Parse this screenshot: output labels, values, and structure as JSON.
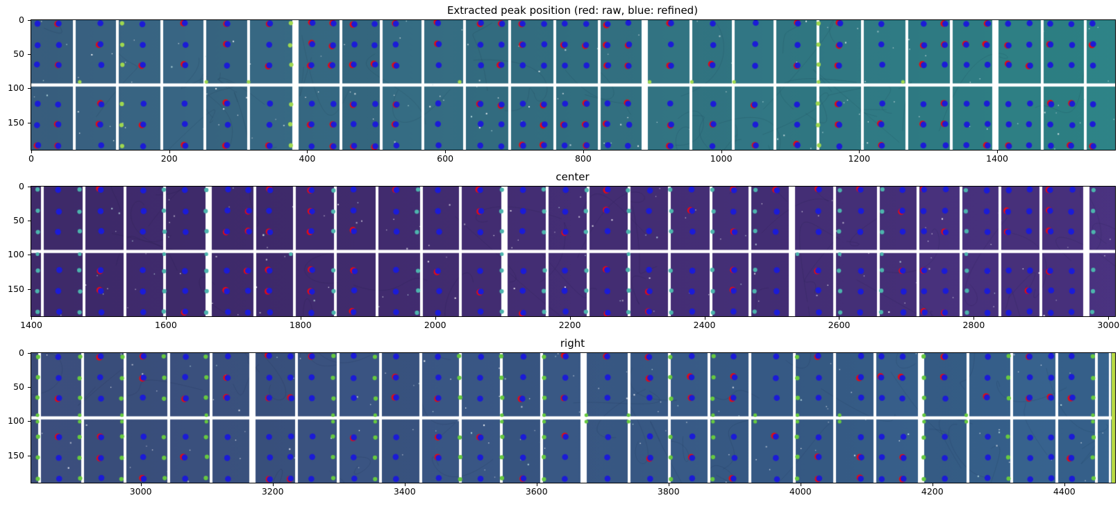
{
  "figure": {
    "background": "#ffffff",
    "text_color": "#000000",
    "axis_frame_color": "#000000"
  },
  "peaks": {
    "legend_note": "red: raw, blue: refined",
    "refined_color": "#1b1bd6",
    "raw_color": "#e30b13",
    "rows": [
      5,
      36,
      66,
      123,
      153,
      184
    ],
    "col_spacing": 30.4,
    "col_offset": 9,
    "dot_radius": 4.3
  },
  "chart_data": [
    {
      "type": "heatmap",
      "panel": "top",
      "title": "Extracted peak position (red: raw, blue: refined)",
      "x_ticks": [
        0,
        200,
        400,
        600,
        800,
        1000,
        1200,
        1400
      ],
      "y_ticks": [
        0,
        50,
        100,
        150
      ],
      "x_range": [
        0,
        1571
      ],
      "y_range": [
        0,
        190
      ],
      "colormap": "viridis",
      "bg_left": "#3b6284",
      "bg_right": "#2e8487",
      "module_width": 58,
      "first_col_width": 60,
      "gap_width": 4,
      "wide_gap_every": 8,
      "wide_gap_width": 9,
      "h_gap_y": 95,
      "edge_dot_color": "#9fd84f",
      "edge_dot_prob": 0.42,
      "edge_row_prob": 0.45,
      "edge_rows": [
        90.5
      ],
      "raw_prob": 0.5,
      "edge_strip": false,
      "strip_color": "",
      "seed": 7
    },
    {
      "type": "heatmap",
      "panel": "center",
      "title": "center",
      "x_ticks": [
        1400,
        1600,
        1800,
        2000,
        2200,
        2400,
        2600,
        2800,
        3000
      ],
      "y_ticks": [
        0,
        50,
        100,
        150
      ],
      "x_range": [
        1400,
        3010
      ],
      "y_range": [
        0,
        190
      ],
      "colormap": "viridis",
      "bg_left": "#402b6c",
      "bg_right": "#4a3380",
      "module_width": 56,
      "first_col_width": 14,
      "gap_width": 4,
      "wide_gap_every": 7,
      "wide_gap_width": 9,
      "h_gap_y": 95,
      "edge_dot_color": "#4db4ad",
      "edge_dot_prob": 0.75,
      "edge_row_prob": 0.6,
      "edge_rows": [
        99
      ],
      "raw_prob": 0.3,
      "edge_strip": false,
      "strip_color": "",
      "seed": 13
    },
    {
      "type": "heatmap",
      "panel": "right",
      "title": "right",
      "x_ticks": [
        3000,
        3200,
        3400,
        3600,
        3800,
        4000,
        4200,
        4400
      ],
      "y_ticks": [
        0,
        50,
        100,
        150
      ],
      "x_range": [
        2834,
        4477
      ],
      "y_range": [
        0,
        190
      ],
      "colormap": "viridis",
      "bg_left": "#3d4f7e",
      "bg_right": "#37648f",
      "module_width": 57,
      "first_col_width": 10,
      "gap_width": 4,
      "wide_gap_every": 8,
      "wide_gap_width": 9,
      "h_gap_y": 95,
      "edge_dot_color": "#66c93f",
      "edge_dot_prob": 0.55,
      "edge_row_prob": 0.55,
      "edge_rows": [
        91,
        100.5
      ],
      "raw_prob": 0.35,
      "edge_strip": true,
      "strip_color": "#b9db44",
      "seed": 29
    }
  ]
}
